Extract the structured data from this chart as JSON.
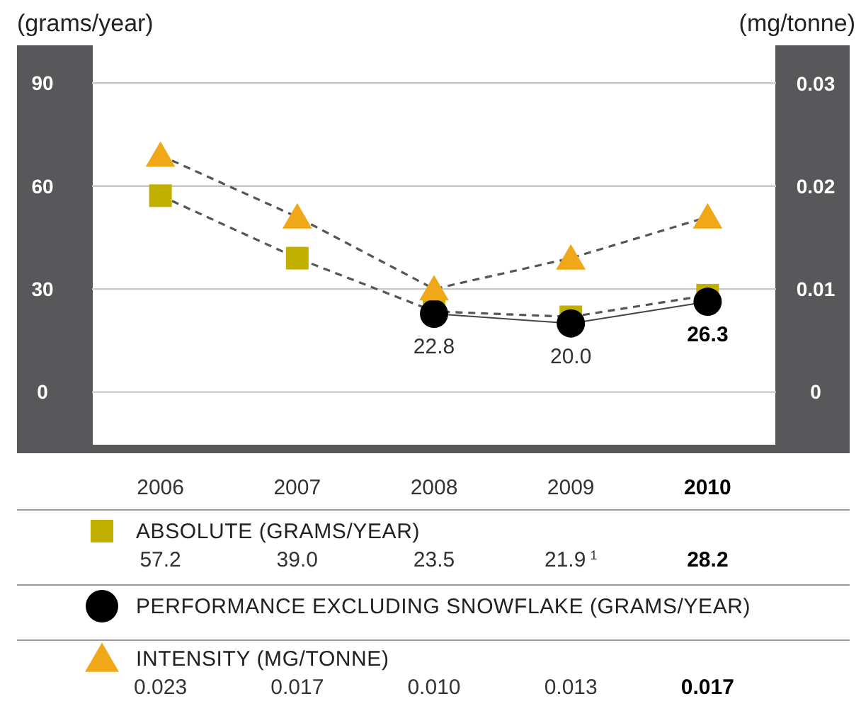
{
  "chart_data": {
    "type": "line",
    "ylabel": "(grams/year)",
    "y2label": "(mg/tonne)",
    "categories": [
      "2006",
      "2007",
      "2008",
      "2009",
      "2010"
    ],
    "ylim": [
      -17,
      101
    ],
    "yticks": [
      0,
      30,
      60,
      90
    ],
    "y2lim": [
      -0.0057,
      0.0337
    ],
    "y2ticks": [
      0,
      0.01,
      0.02,
      0.03
    ],
    "grid": "y",
    "legend": "bottom",
    "series": [
      {
        "name": "ABSOLUTE (GRAMS/YEAR)",
        "color": "#c2b000",
        "marker": "square",
        "line_style": "dashed",
        "values": [
          57.2,
          39.0,
          23.5,
          21.9,
          28.2
        ],
        "value_labels": [
          "57.2",
          "39.0",
          "23.5",
          "21.9$^{1}$",
          "28.2"
        ]
      },
      {
        "name": "PERFORMANCE EXCLUDING SNOWFLAKE (GRAMS/YEAR)",
        "color": "#000000",
        "marker": "circle",
        "line_style": "solid",
        "values": [
          null,
          null,
          22.8,
          20.0,
          26.3
        ],
        "value_labels": [
          null,
          null,
          "22.8",
          "20.0",
          "26.3"
        ]
      },
      {
        "name": "INTENSITY (MG/TONNE)",
        "color": "#f0a818",
        "marker": "triangle",
        "line_style": "dashed",
        "axis": "y2",
        "values": [
          0.023,
          0.017,
          0.01,
          0.013,
          0.017
        ],
        "value_labels": [
          "0.023",
          "0.017",
          "0.010",
          "0.013",
          "0.017"
        ]
      }
    ]
  }
}
